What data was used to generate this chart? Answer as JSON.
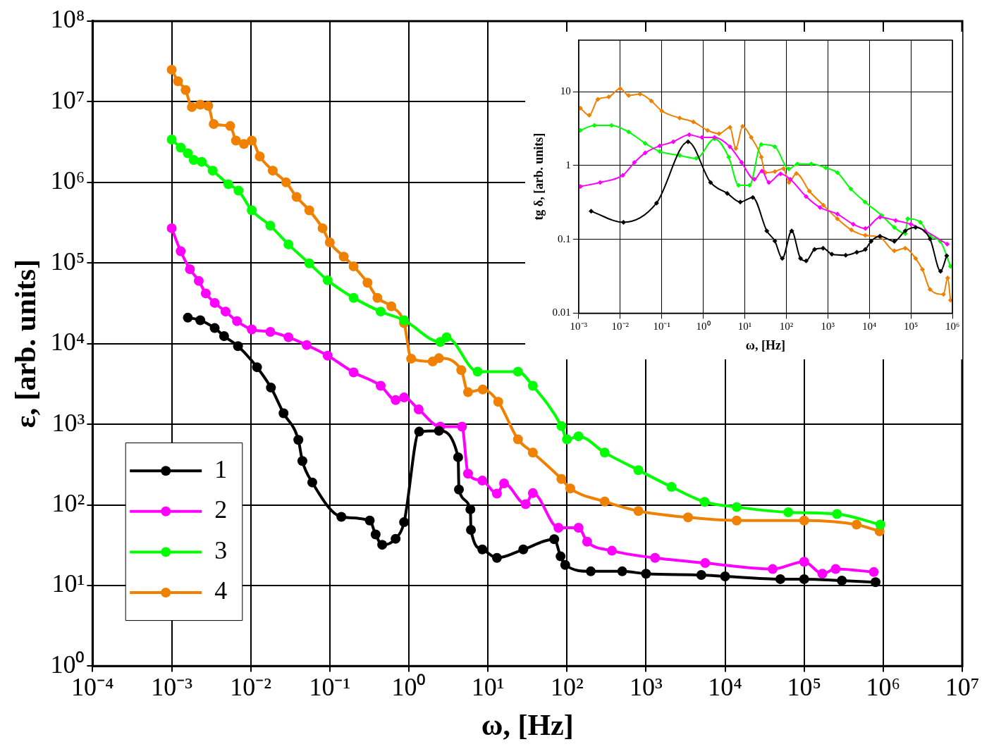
{
  "chart_data": [
    {
      "type": "line",
      "xlabel": "ω, [Hz]",
      "ylabel": "ε, [arb. units]",
      "log": "xy",
      "grid": true,
      "legend": "bottom left",
      "marker": "circle",
      "line_style": "solid",
      "xlim": [
        0.0001,
        10000000
      ],
      "ylim": [
        1,
        100000000
      ],
      "xticks": [
        {
          "value": 0.0001,
          "label": "10⁻⁴"
        },
        {
          "value": 0.001,
          "label": "10⁻³"
        },
        {
          "value": 0.01,
          "label": "10⁻²"
        },
        {
          "value": 0.1,
          "label": "10⁻¹"
        },
        {
          "value": 1,
          "label": "10⁰"
        },
        {
          "value": 10,
          "label": "10¹"
        },
        {
          "value": 100,
          "label": "10²"
        },
        {
          "value": 1000,
          "label": "10³"
        },
        {
          "value": 10000,
          "label": "10⁴"
        },
        {
          "value": 100000,
          "label": "10⁵"
        },
        {
          "value": 1000000,
          "label": "10⁶"
        },
        {
          "value": 10000000,
          "label": "10⁷"
        }
      ],
      "yticks": [
        {
          "value": 1,
          "label": "10⁰"
        },
        {
          "value": 10,
          "label": "10¹"
        },
        {
          "value": 100,
          "label": "10²"
        },
        {
          "value": 1000,
          "label": "10³"
        },
        {
          "value": 10000,
          "label": "10⁴"
        },
        {
          "value": 100000,
          "label": "10⁵"
        },
        {
          "value": 1000000,
          "label": "10⁶"
        },
        {
          "value": 10000000,
          "label": "10⁷"
        },
        {
          "value": 100000000,
          "label": "10⁸"
        }
      ],
      "series": [
        {
          "name": "1",
          "color": "#000000",
          "x": [
            0.0016,
            0.0023,
            0.0035,
            0.0046,
            0.0069,
            0.012,
            0.018,
            0.026,
            0.04,
            0.045,
            0.06,
            0.14,
            0.32,
            0.38,
            0.46,
            0.68,
            0.87,
            1.35,
            2.4,
            4.2,
            4.3,
            6,
            6.1,
            8.5,
            13,
            28,
            69,
            83,
            95,
            200,
            500,
            1000,
            5000,
            10000,
            50000,
            100000,
            300000,
            800000
          ],
          "values": [
            21000,
            19500,
            15600,
            12400,
            9300,
            5100,
            2850,
            1370,
            640,
            350,
            190,
            71,
            64,
            43,
            32,
            38,
            61,
            810,
            830,
            390,
            155,
            88,
            49,
            28,
            22,
            28,
            37.5,
            23,
            18,
            15,
            15,
            14,
            13.5,
            13,
            12,
            12,
            11.5,
            11
          ]
        },
        {
          "name": "2",
          "color": "#ff00ff",
          "x": [
            0.001,
            0.0013,
            0.0017,
            0.0022,
            0.0027,
            0.0035,
            0.0048,
            0.0067,
            0.0103,
            0.0177,
            0.03,
            0.051,
            0.094,
            0.2,
            0.44,
            0.68,
            0.87,
            1.33,
            2.5,
            4.7,
            5.6,
            8.5,
            13,
            16,
            30,
            37,
            78,
            140,
            180,
            370,
            1300,
            5600,
            40000,
            100000,
            170000,
            250000,
            760000
          ],
          "values": [
            270000,
            140000,
            84000,
            60000,
            42000,
            32000,
            25000,
            19000,
            15000,
            14000,
            12000,
            9600,
            7100,
            4400,
            3000,
            2000,
            2150,
            1530,
            935,
            935,
            244,
            200,
            138,
            185,
            102,
            140,
            52,
            52,
            35,
            27,
            22,
            19,
            16,
            19.7,
            14,
            16,
            14.7
          ]
        },
        {
          "name": "3",
          "color": "#00ff00",
          "x": [
            0.001,
            0.0013,
            0.0016,
            0.0019,
            0.0024,
            0.0033,
            0.0052,
            0.007,
            0.0103,
            0.0177,
            0.03,
            0.055,
            0.094,
            0.2,
            0.44,
            0.87,
            2.5,
            3,
            7.4,
            24,
            37,
            85,
            100,
            140,
            300,
            800,
            2100,
            5500,
            14000,
            63000,
            260000,
            920000
          ],
          "values": [
            3400000,
            2700000,
            2300000,
            1900000,
            1800000,
            1400000,
            950000,
            790000,
            450000,
            290000,
            170000,
            99000,
            61000,
            37000,
            25000,
            19500,
            10500,
            12000,
            4500,
            4500,
            3000,
            950,
            650,
            710,
            445,
            270,
            167,
            109,
            94,
            81,
            77,
            57
          ]
        },
        {
          "name": "4",
          "color": "#f08000",
          "x": [
            0.001,
            0.0012,
            0.0015,
            0.0018,
            0.0023,
            0.0029,
            0.0034,
            0.0055,
            0.0065,
            0.0082,
            0.0103,
            0.013,
            0.019,
            0.028,
            0.038,
            0.055,
            0.081,
            0.1,
            0.15,
            0.2,
            0.3,
            0.4,
            0.6,
            0.87,
            1.07,
            2,
            2.4,
            4.6,
            5.6,
            8.6,
            13.5,
            24,
            37,
            85,
            110,
            300,
            800,
            3400,
            14000,
            100000,
            460000,
            900000
          ],
          "values": [
            25000000,
            18000000,
            14000000,
            8600000,
            9200000,
            8900000,
            5300000,
            5000000,
            3300000,
            3000000,
            3300000,
            2100000,
            1400000,
            1000000,
            660000,
            450000,
            270000,
            180000,
            120000,
            91000,
            57000,
            37000,
            29000,
            18000,
            6500,
            6000,
            6600,
            4700,
            2500,
            2700,
            1900,
            650,
            445,
            210,
            160,
            110,
            84,
            70,
            64,
            64,
            57,
            47
          ]
        }
      ]
    },
    {
      "type": "line",
      "xlabel": "ω, [Hz]",
      "ylabel": "tg δ, [arb. units]",
      "log": "xy",
      "grid": true,
      "marker": "diamond",
      "line_style": "solid",
      "xlim": [
        0.001,
        1000000
      ],
      "ylim": [
        0.01,
        50
      ],
      "xticks": [
        {
          "value": 0.001,
          "label": "10⁻³"
        },
        {
          "value": 0.01,
          "label": "10⁻²"
        },
        {
          "value": 0.1,
          "label": "10⁻¹"
        },
        {
          "value": 1,
          "label": "10⁰"
        },
        {
          "value": 10,
          "label": "10¹"
        },
        {
          "value": 100,
          "label": "10²"
        },
        {
          "value": 1000,
          "label": "10³"
        },
        {
          "value": 10000,
          "label": "10⁴"
        },
        {
          "value": 100000,
          "label": "10⁵"
        },
        {
          "value": 1000000,
          "label": "10⁶"
        }
      ],
      "yticks": [
        0.01,
        0.1,
        1,
        10
      ],
      "series": [
        {
          "color": "#000000",
          "x": [
            0.002,
            0.012,
            0.075,
            0.43,
            1.5,
            3.8,
            7.8,
            15.6,
            34,
            53,
            80,
            135,
            220,
            300,
            480,
            770,
            1250,
            2700,
            5000,
            8000,
            11000,
            18000,
            40000,
            73000,
            130000,
            290000,
            520000,
            730000
          ],
          "values": [
            0.24,
            0.17,
            0.31,
            2.1,
            0.59,
            0.42,
            0.32,
            0.37,
            0.13,
            0.095,
            0.055,
            0.13,
            0.055,
            0.051,
            0.073,
            0.076,
            0.063,
            0.061,
            0.067,
            0.073,
            0.094,
            0.11,
            0.094,
            0.13,
            0.145,
            0.101,
            0.037,
            0.06
          ]
        },
        {
          "color": "#ff00ff",
          "x": [
            0.0011,
            0.0033,
            0.0116,
            0.022,
            0.04,
            0.09,
            0.19,
            0.46,
            0.93,
            1.87,
            4.4,
            8.4,
            17,
            26,
            38,
            73,
            125,
            300,
            650,
            1700,
            4100,
            8000,
            18000,
            43000,
            100000,
            220000,
            750000
          ],
          "values": [
            0.52,
            0.59,
            0.74,
            1.1,
            1.48,
            1.85,
            2.1,
            2.62,
            2.4,
            2.4,
            1.8,
            1.1,
            0.65,
            0.84,
            0.59,
            0.77,
            0.65,
            0.38,
            0.27,
            0.22,
            0.16,
            0.14,
            0.2,
            0.18,
            0.16,
            0.13,
            0.086
          ]
        },
        {
          "color": "#00ff00",
          "x": [
            0.0011,
            0.0024,
            0.0062,
            0.016,
            0.04,
            0.09,
            0.27,
            0.68,
            1.87,
            4.1,
            7.1,
            13,
            25,
            53,
            115,
            185,
            400,
            900,
            1700,
            3600,
            7900,
            20000,
            40000,
            73000,
            84000,
            170000,
            290000,
            510000,
            900000
          ],
          "values": [
            3.0,
            3.5,
            3.5,
            2.85,
            2.0,
            1.55,
            1.37,
            1.25,
            2.3,
            1.3,
            0.54,
            0.54,
            1.93,
            1.8,
            0.9,
            1.05,
            1.05,
            0.93,
            0.8,
            0.48,
            0.32,
            0.21,
            0.145,
            0.12,
            0.19,
            0.17,
            0.11,
            0.094,
            0.043
          ]
        },
        {
          "color": "#f08000",
          "x": [
            0.0011,
            0.0018,
            0.0029,
            0.0053,
            0.01,
            0.016,
            0.03,
            0.056,
            0.1,
            0.27,
            0.58,
            1.27,
            2.4,
            4.4,
            6.1,
            8.9,
            14.3,
            25,
            31,
            53,
            86,
            116,
            175,
            360,
            780,
            1700,
            3700,
            8000,
            18000,
            40000,
            73000,
            130000,
            190000,
            290000,
            610000,
            770000,
            900000
          ],
          "values": [
            6,
            4.8,
            7.9,
            8.5,
            11,
            8.9,
            9.3,
            7.5,
            5.5,
            4.4,
            3.9,
            3.0,
            2.7,
            3.3,
            1.7,
            3.4,
            2.4,
            1.3,
            0.8,
            0.83,
            0.91,
            0.59,
            0.78,
            0.45,
            0.29,
            0.19,
            0.134,
            0.113,
            0.107,
            0.07,
            0.076,
            0.055,
            0.039,
            0.021,
            0.018,
            0.03,
            0.015
          ]
        }
      ]
    }
  ]
}
